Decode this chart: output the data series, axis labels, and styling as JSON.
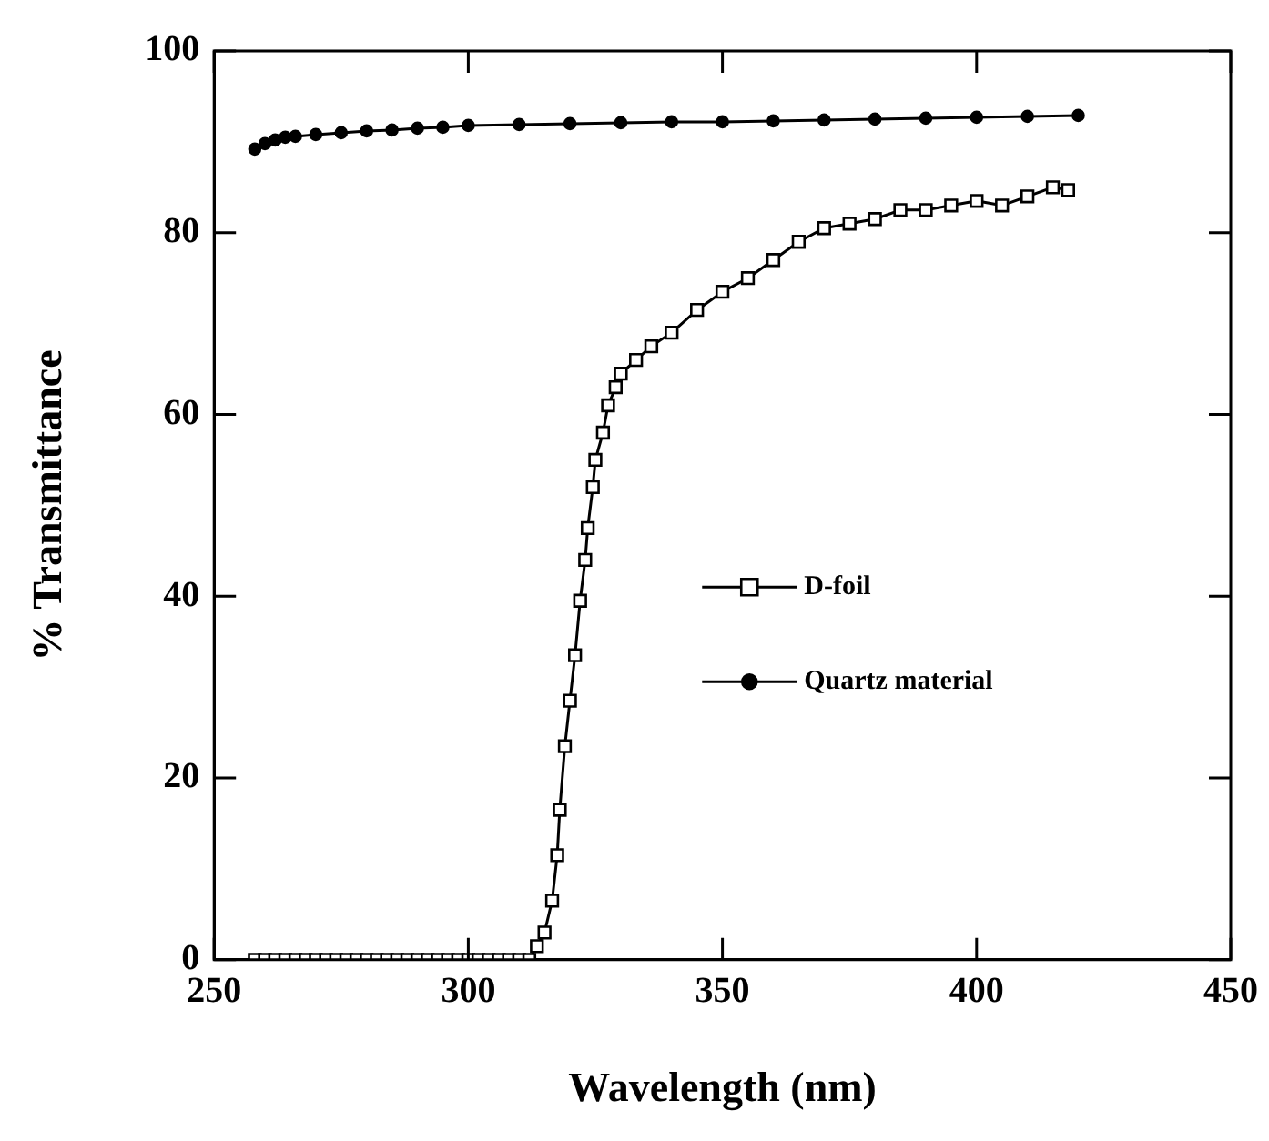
{
  "chart_data": {
    "type": "line",
    "xlabel": "Wavelength (nm)",
    "ylabel": "% Transmittance",
    "xlim": [
      250,
      450
    ],
    "xticks": [
      250,
      300,
      350,
      400,
      450
    ],
    "ylim": [
      0,
      100
    ],
    "yticks": [
      0,
      20,
      40,
      60,
      80,
      100
    ],
    "grid": false,
    "legend": "right",
    "line_style": "solid",
    "series": [
      {
        "name": "D-foil",
        "color": "#000000",
        "marker": "square",
        "x": [
          258,
          260,
          262,
          264,
          266,
          268,
          270,
          272,
          274,
          276,
          278,
          280,
          282,
          284,
          286,
          288,
          290,
          292,
          294,
          296,
          298,
          300,
          302,
          304,
          306,
          308,
          310,
          312,
          313.5,
          315,
          316.5,
          317.5,
          318,
          319,
          320,
          321,
          322,
          323,
          323.5,
          324.5,
          325,
          326.5,
          327.5,
          329,
          330,
          333,
          336,
          340,
          345,
          350,
          355,
          360,
          365,
          370,
          375,
          380,
          385,
          390,
          395,
          400,
          405,
          410,
          415,
          418
        ],
        "values": [
          0,
          0,
          0,
          0,
          0,
          0,
          0,
          0,
          0,
          0,
          0,
          0,
          0,
          0,
          0,
          0,
          0,
          0,
          0,
          0,
          0,
          0,
          0,
          0,
          0,
          0,
          0,
          0,
          1.5,
          3,
          6.5,
          11.5,
          16.5,
          23.5,
          28.5,
          33.5,
          39.5,
          44,
          47.5,
          52,
          55,
          58,
          61,
          63,
          64.5,
          66,
          67.5,
          69,
          71.5,
          73.5,
          75,
          77,
          79,
          80.5,
          81,
          81.5,
          82.5,
          82.5,
          83,
          83.5,
          83,
          84,
          85,
          84.7
        ]
      },
      {
        "name": "Quartz material",
        "color": "#000000",
        "marker": "circle",
        "x": [
          258,
          260,
          262,
          264,
          266,
          270,
          275,
          280,
          285,
          290,
          295,
          300,
          310,
          320,
          330,
          340,
          350,
          360,
          370,
          380,
          390,
          400,
          410,
          420
        ],
        "values": [
          89.2,
          89.8,
          90.2,
          90.5,
          90.6,
          90.8,
          91,
          91.2,
          91.3,
          91.5,
          91.6,
          91.8,
          91.9,
          92,
          92.1,
          92.2,
          92.2,
          92.3,
          92.4,
          92.5,
          92.6,
          92.7,
          92.8,
          92.9
        ]
      }
    ]
  }
}
